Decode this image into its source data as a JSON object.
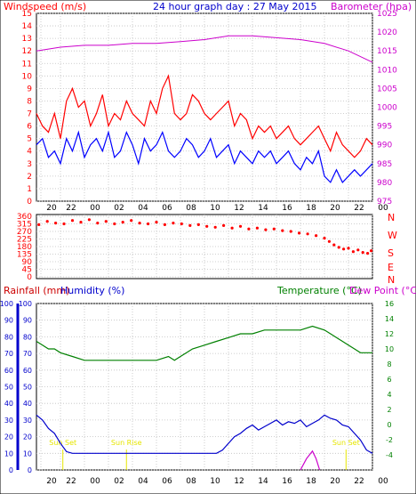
{
  "title": "24 hour graph day : 27 May 2015",
  "colors": {
    "wind": "#ff0000",
    "gust": "#ff0000",
    "windavg": "#0000ff",
    "baro": "#cc00cc",
    "dir": "#ff0000",
    "rain": "#cc0000",
    "humidity": "#0000cc",
    "temp": "#008000",
    "dew": "#cc00cc",
    "axis_blue": "#0000cc",
    "grid": "#c0c0c0",
    "sun": "#e6e600"
  },
  "time_ticks": [
    "20",
    "22",
    "00",
    "02",
    "04",
    "06",
    "08",
    "10",
    "12",
    "14",
    "16",
    "18",
    "20",
    "22",
    "00"
  ],
  "compass": [
    "N",
    "W",
    "S",
    "E",
    "N"
  ],
  "chart_data": [
    {
      "type": "line",
      "id": "wind-baro",
      "title": "",
      "ylabel_left": "Windspeed (m/s)",
      "ylabel_right": "Barometer (hpa)",
      "ylim_left": [
        0,
        15
      ],
      "ylim_right": [
        975,
        1025
      ],
      "yticks_left": [
        0,
        1,
        2,
        3,
        4,
        5,
        6,
        7,
        8,
        9,
        10,
        11,
        12,
        13,
        14,
        15
      ],
      "yticks_right": [
        975,
        980,
        985,
        990,
        995,
        1000,
        1005,
        1010,
        1015,
        1020,
        1025
      ],
      "series": [
        {
          "axis": "left",
          "x": [
            0,
            0.5,
            1,
            1.5,
            2,
            2.5,
            3,
            3.5,
            4,
            4.5,
            5,
            5.5,
            6,
            6.5,
            7,
            7.5,
            8,
            8.5,
            9,
            9.5,
            10,
            10.5,
            11,
            11.5,
            12,
            12.5,
            13,
            13.5,
            14,
            14.5,
            15,
            15.5,
            16,
            16.5,
            17,
            17.5,
            18,
            18.5,
            19,
            19.5,
            20,
            20.5,
            21,
            21.5,
            22,
            22.5,
            23,
            23.5,
            24,
            24.5,
            25,
            25.5,
            26,
            26.5,
            27,
            27.5,
            28
          ],
          "y": [
            7,
            6,
            5.5,
            7,
            5,
            8,
            9,
            7.5,
            8,
            6,
            7,
            8.5,
            6,
            7,
            6.5,
            8,
            7,
            6.5,
            6,
            8,
            7,
            9,
            10,
            7,
            6.5,
            7,
            8.5,
            8,
            7,
            6.5,
            7,
            7.5,
            8,
            6,
            7,
            6.5,
            5,
            6,
            5.5,
            6,
            5,
            5.5,
            6,
            5,
            4.5,
            5,
            5.5,
            6,
            5,
            4,
            5.5,
            4.5,
            4,
            3.5,
            4,
            5,
            4.5
          ]
        },
        {
          "axis": "left",
          "x": [
            0,
            0.5,
            1,
            1.5,
            2,
            2.5,
            3,
            3.5,
            4,
            4.5,
            5,
            5.5,
            6,
            6.5,
            7,
            7.5,
            8,
            8.5,
            9,
            9.5,
            10,
            10.5,
            11,
            11.5,
            12,
            12.5,
            13,
            13.5,
            14,
            14.5,
            15,
            15.5,
            16,
            16.5,
            17,
            17.5,
            18,
            18.5,
            19,
            19.5,
            20,
            20.5,
            21,
            21.5,
            22,
            22.5,
            23,
            23.5,
            24,
            24.5,
            25,
            25.5,
            26,
            26.5,
            27,
            27.5,
            28
          ],
          "y": [
            4.5,
            5,
            3.5,
            4,
            3,
            5,
            4,
            5.5,
            3.5,
            4.5,
            5,
            4,
            5.5,
            3.5,
            4,
            5.5,
            4.5,
            3,
            5,
            4,
            4.5,
            5.5,
            4,
            3.5,
            4,
            5,
            4.5,
            3.5,
            4,
            5,
            3.5,
            4,
            4.5,
            3,
            4,
            3.5,
            3,
            4,
            3.5,
            4,
            3,
            3.5,
            4,
            3,
            2.5,
            3.5,
            3,
            4,
            2,
            1.5,
            2.5,
            1.5,
            2,
            2.5,
            2,
            2.5,
            3
          ]
        },
        {
          "axis": "right",
          "x": [
            0,
            2,
            4,
            6,
            8,
            10,
            12,
            14,
            16,
            18,
            20,
            22,
            24,
            26,
            28
          ],
          "y": [
            1015,
            1016,
            1016.5,
            1016.5,
            1017,
            1017,
            1017.5,
            1018,
            1019,
            1019,
            1018.5,
            1018,
            1017,
            1015,
            1012
          ]
        }
      ]
    },
    {
      "type": "scatter",
      "id": "wind-direction",
      "title": "",
      "ylabel": "",
      "ylim": [
        0,
        360
      ],
      "yticks": [
        0,
        45,
        90,
        135,
        180,
        225,
        270,
        315,
        360
      ],
      "series": [
        {
          "x": [
            0.2,
            0.9,
            1.6,
            2.3,
            3.0,
            3.7,
            4.4,
            5.1,
            5.8,
            6.5,
            7.2,
            7.9,
            8.6,
            9.3,
            10.0,
            10.7,
            11.4,
            12.1,
            12.8,
            13.5,
            14.2,
            14.9,
            15.6,
            16.3,
            17.0,
            17.7,
            18.4,
            19.1,
            19.8,
            20.5,
            21.2,
            21.9,
            22.6,
            23.3,
            24.0,
            24.4,
            24.8,
            25.2,
            25.6,
            26.0,
            26.4,
            26.8,
            27.2,
            27.6,
            27.9
          ],
          "y": [
            310,
            330,
            320,
            315,
            335,
            325,
            340,
            320,
            330,
            315,
            325,
            335,
            320,
            315,
            325,
            310,
            320,
            315,
            305,
            310,
            300,
            295,
            305,
            290,
            300,
            285,
            290,
            280,
            285,
            275,
            270,
            260,
            255,
            245,
            230,
            210,
            190,
            175,
            165,
            170,
            150,
            160,
            145,
            140,
            155
          ]
        }
      ]
    },
    {
      "type": "line",
      "id": "rain-humidity-temp",
      "title": "",
      "ylabel_left": "Rainfall (mm)",
      "ylabel_left2": "Humidity (%)",
      "ylabel_right": "Temperature (°C)",
      "ylabel_right2": "Dew Point (°C)",
      "ylim_left": [
        0,
        100
      ],
      "ylim_right": [
        -6,
        16
      ],
      "yticks_left": [
        0,
        10,
        20,
        30,
        40,
        50,
        60,
        70,
        80,
        90,
        100
      ],
      "yticks_right": [
        -4,
        -2,
        0,
        2,
        4,
        6,
        8,
        10,
        12,
        14,
        16
      ],
      "annotations": [
        {
          "text": "Sun Set",
          "x": 2.2
        },
        {
          "text": "Sun Rise",
          "x": 7.5
        },
        {
          "text": "Sun Set",
          "x": 25.8
        }
      ],
      "series": [
        {
          "axis": "left",
          "x": [
            0,
            0.5,
            1,
            1.5,
            2,
            2.5,
            3,
            5,
            7,
            9,
            11,
            13,
            15,
            15.5,
            16,
            16.5,
            17,
            17.5,
            18,
            18.5,
            19,
            19.5,
            20,
            20.5,
            21,
            21.5,
            22,
            22.5,
            23,
            23.5,
            24,
            24.5,
            25,
            25.5,
            26,
            26.5,
            27,
            27.5,
            28
          ],
          "y": [
            33,
            30,
            25,
            22,
            16,
            11,
            10,
            10,
            10,
            10,
            10,
            10,
            10,
            12,
            16,
            20,
            22,
            25,
            27,
            24,
            26,
            28,
            30,
            27,
            29,
            28,
            30,
            26,
            28,
            30,
            33,
            31,
            30,
            27,
            26,
            22,
            18,
            12,
            10
          ]
        },
        {
          "axis": "right",
          "x": [
            0,
            0.5,
            1,
            1.5,
            2,
            3,
            4,
            5,
            6,
            7,
            8,
            9,
            10,
            11,
            11.5,
            12,
            12.5,
            13,
            14,
            15,
            16,
            17,
            18,
            19,
            20,
            21,
            22,
            23,
            24,
            24.5,
            25,
            25.5,
            26,
            26.5,
            27,
            27.5,
            28
          ],
          "y": [
            11,
            10.5,
            10,
            10,
            9.5,
            9,
            8.5,
            8.5,
            8.5,
            8.5,
            8.5,
            8.5,
            8.5,
            9,
            8.5,
            9,
            9.5,
            10,
            10.5,
            11,
            11.5,
            12,
            12,
            12.5,
            12.5,
            12.5,
            12.5,
            13,
            12.5,
            12,
            11.5,
            11,
            10.5,
            10,
            9.5,
            9.5,
            9.5
          ]
        },
        {
          "axis": "right",
          "x": [
            22,
            22.5,
            23,
            23.3,
            23.6
          ],
          "y": [
            -6,
            -4.5,
            -3.5,
            -4.5,
            -6
          ]
        }
      ]
    }
  ]
}
